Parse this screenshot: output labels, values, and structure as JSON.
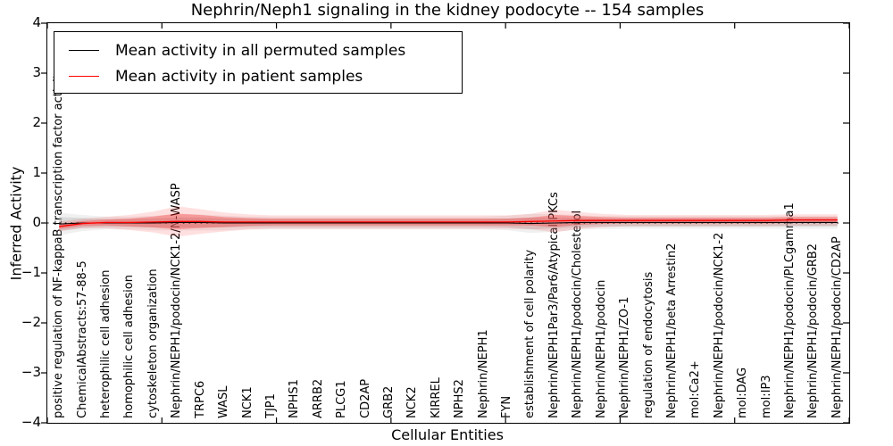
{
  "figure": {
    "background": "#ffffff"
  },
  "chart_data": {
    "type": "line",
    "title": "Nephrin/Neph1 signaling in the kidney podocyte -- 154 samples",
    "xlabel": "Cellular Entities",
    "ylabel": "Inferred Activity",
    "ylim": [
      -4,
      4
    ],
    "yticks": [
      "4",
      "3",
      "2",
      "1",
      "0",
      "−1",
      "−2",
      "−3",
      "−4"
    ],
    "grid": false,
    "zero_line_style": "dotted",
    "legend_position": "upper left",
    "categories": [
      "positive regulation of NF-kappaB transcription factor activity",
      "ChemicalAbstracts:57-88-5",
      "heterophilic cell adhesion",
      "homophilic cell adhesion",
      "cytoskeleton organization",
      "Nephrin/NEPH1/podocin/NCK1-2/N-WASP",
      "TRPC6",
      "WASL",
      "NCK1",
      "TJP1",
      "NPHS1",
      "ARRB2",
      "PLCG1",
      "CD2AP",
      "GRB2",
      "NCK2",
      "KIRREL",
      "NPHS2",
      "Nephrin/NEPH1",
      "FYN",
      "establishment of cell polarity",
      "Nephrin/NEPH1Par3/Par6/Atypical PKCs",
      "Nephrin/NEPH1/podocin/Cholesterol",
      "Nephrin/NEPH1/podocin",
      "Nephrin/NEPH1/ZO-1",
      "regulation of endocytosis",
      "Nephrin/NEPH1/beta Arrestin2",
      "mol:Ca2+",
      "Nephrin/NEPH1/podocin/NCK1-2",
      "mol:DAG",
      "mol:IP3",
      "Nephrin/NEPH1/podocin/PLCgamma1",
      "Nephrin/NEPH1/podocin/GRB2",
      "Nephrin/NEPH1/podocin/CD2AP"
    ],
    "series": [
      {
        "name": "Mean activity in all permuted samples",
        "color": "#000000",
        "band_color": "#bbbbbb",
        "values": [
          -0.02,
          0.0,
          0.0,
          0.0,
          0.0,
          0.01,
          0.01,
          0.0,
          0.0,
          0.0,
          0.0,
          0.0,
          0.0,
          0.0,
          0.0,
          0.0,
          0.0,
          0.0,
          0.0,
          0.0,
          -0.01,
          0.0,
          0.01,
          0.01,
          0.01,
          0.01,
          0.01,
          0.01,
          0.01,
          0.01,
          0.01,
          0.01,
          0.01,
          0.01
        ],
        "band_halfwidth": [
          0.14,
          0.1,
          0.08,
          0.08,
          0.09,
          0.1,
          0.1,
          0.09,
          0.08,
          0.08,
          0.08,
          0.08,
          0.08,
          0.08,
          0.08,
          0.08,
          0.08,
          0.08,
          0.08,
          0.09,
          0.12,
          0.11,
          0.09,
          0.08,
          0.08,
          0.08,
          0.08,
          0.08,
          0.08,
          0.08,
          0.08,
          0.08,
          0.08,
          0.08
        ]
      },
      {
        "name": "Mean activity in patient samples",
        "color": "#ff0000",
        "band_color": "#ff0000",
        "values": [
          -0.07,
          -0.01,
          0.01,
          0.01,
          0.02,
          0.03,
          0.03,
          0.02,
          0.02,
          0.02,
          0.02,
          0.02,
          0.02,
          0.02,
          0.02,
          0.02,
          0.02,
          0.02,
          0.02,
          0.02,
          0.03,
          0.04,
          0.05,
          0.05,
          0.05,
          0.05,
          0.05,
          0.05,
          0.05,
          0.05,
          0.05,
          0.06,
          0.06,
          0.06
        ],
        "band_halfwidth": [
          0.05,
          0.05,
          0.06,
          0.08,
          0.11,
          0.16,
          0.13,
          0.1,
          0.08,
          0.07,
          0.07,
          0.07,
          0.07,
          0.07,
          0.07,
          0.07,
          0.07,
          0.07,
          0.07,
          0.07,
          0.08,
          0.12,
          0.09,
          0.07,
          0.06,
          0.06,
          0.06,
          0.06,
          0.06,
          0.06,
          0.06,
          0.06,
          0.06,
          0.06
        ]
      }
    ]
  }
}
